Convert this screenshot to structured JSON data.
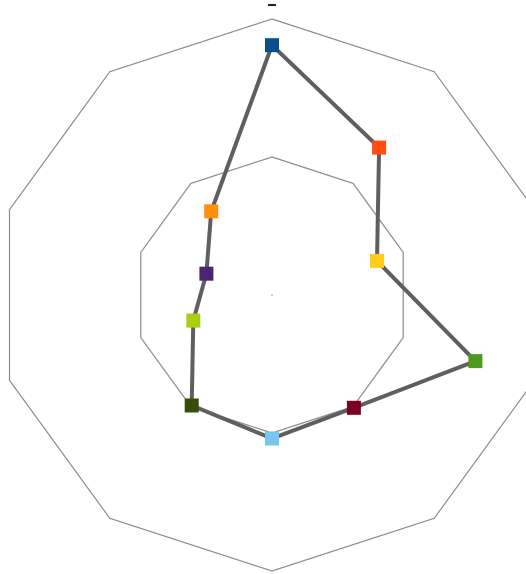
{
  "chart_data": {
    "type": "radar",
    "title": "",
    "rmax": 2,
    "ring_levels": [
      1,
      2
    ],
    "grid": true,
    "legend": "none",
    "axes_count": 10,
    "series": [
      {
        "color": "#5f5f5f",
        "values": [
          1.81,
          1.32,
          0.8,
          1.55,
          1.01,
          1.04,
          0.99,
          0.6,
          0.5,
          0.75
        ],
        "marker_colors": [
          "#0b4f8a",
          "#ff4e0f",
          "#ffcc1a",
          "#4f9a1e",
          "#7a0024",
          "#79c5f2",
          "#364d0c",
          "#a9cf12",
          "#4a2472",
          "#ff8f0c"
        ]
      }
    ],
    "tick_labels": [
      "",
      ""
    ]
  }
}
